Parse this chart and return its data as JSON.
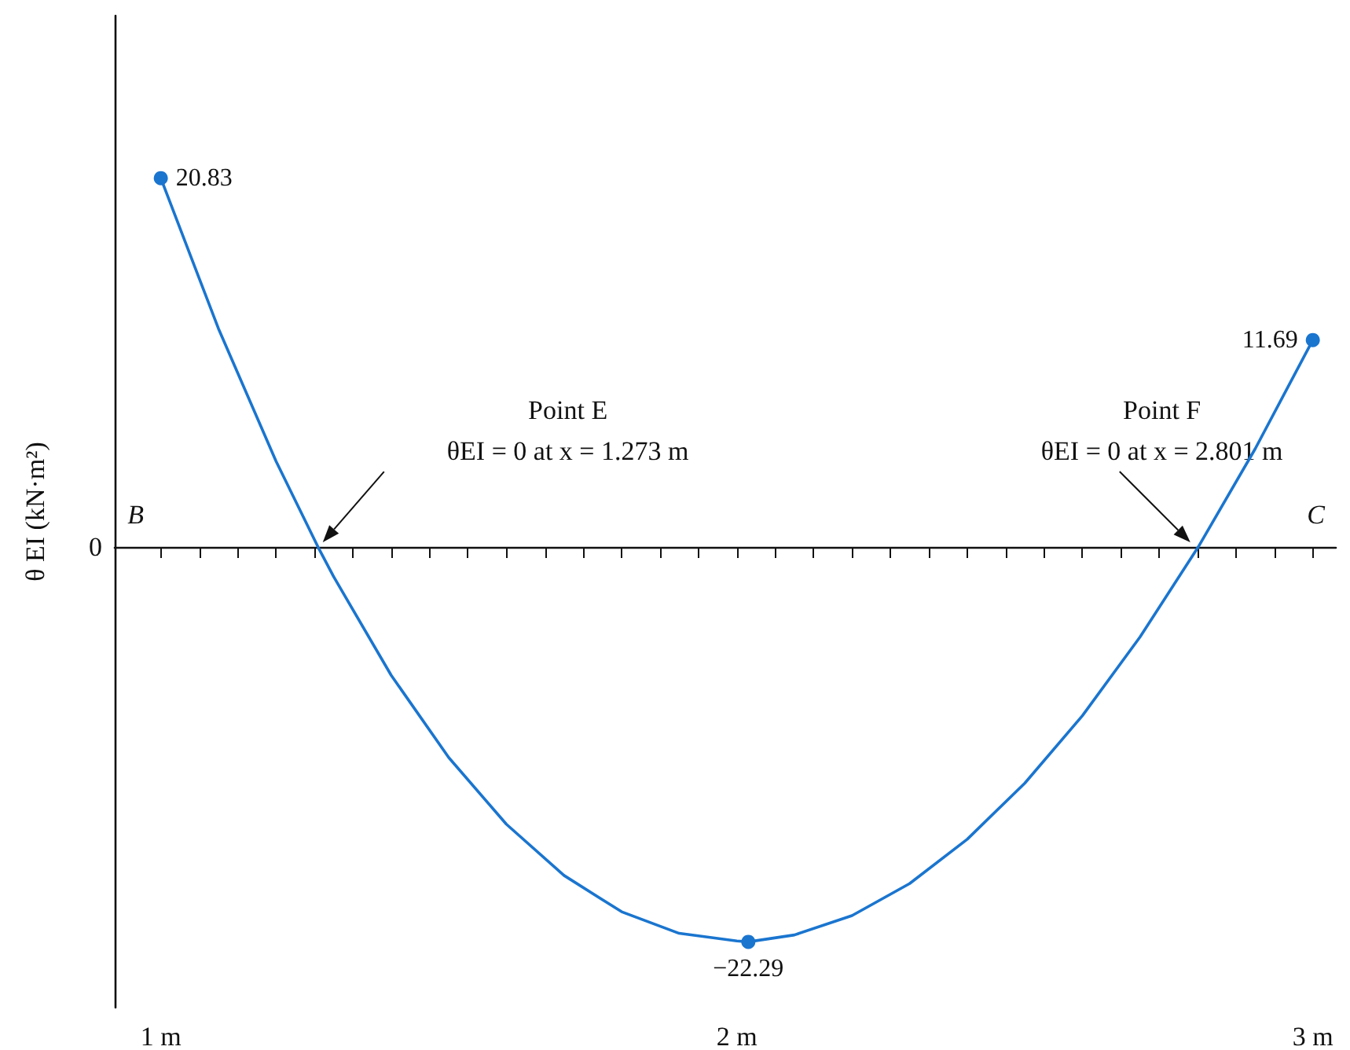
{
  "chart_data": {
    "type": "line",
    "ylabel": "θ EI (kN·m²)",
    "ylim": [
      -26,
      30
    ],
    "x": [
      1,
      1.1,
      1.2,
      1.273,
      1.3,
      1.4,
      1.5,
      1.6,
      1.7,
      1.8,
      1.9,
      2.0,
      2.02,
      2.1,
      2.2,
      2.3,
      2.4,
      2.5,
      2.6,
      2.7,
      2.801,
      2.9,
      3.0
    ],
    "series": [
      {
        "color": "#1a75cf",
        "values": [
          20.83,
          12.34,
          4.85,
          0,
          -1.67,
          -7.24,
          -11.89,
          -15.65,
          -18.54,
          -20.59,
          -21.81,
          -22.24,
          -22.29,
          -21.9,
          -20.81,
          -19.0,
          -16.5,
          -13.33,
          -9.52,
          -5.08,
          0,
          5.55,
          11.69
        ],
        "value_labels": [
          "20.83",
          null,
          null,
          null,
          null,
          null,
          null,
          null,
          null,
          null,
          null,
          null,
          "−22.29",
          null,
          null,
          null,
          null,
          null,
          null,
          null,
          null,
          null,
          "11.69"
        ]
      }
    ],
    "grid": false,
    "xlim": [
      0.92,
      3.04
    ],
    "xticks": [
      {
        "value": 1,
        "label": "1 m"
      },
      {
        "value": 1.067,
        "label": null
      },
      {
        "value": 1.133,
        "label": null
      },
      {
        "value": 1.2,
        "label": null
      },
      {
        "value": 1.267,
        "label": null
      },
      {
        "value": 1.333,
        "label": null
      },
      {
        "value": 1.4,
        "label": null
      },
      {
        "value": 1.467,
        "label": null
      },
      {
        "value": 1.533,
        "label": null
      },
      {
        "value": 1.6,
        "label": null
      },
      {
        "value": 1.667,
        "label": null
      },
      {
        "value": 1.733,
        "label": null
      },
      {
        "value": 1.8,
        "label": null
      },
      {
        "value": 1.867,
        "label": null
      },
      {
        "value": 1.933,
        "label": null
      },
      {
        "value": 2,
        "label": "2 m"
      },
      {
        "value": 2.067,
        "label": null
      },
      {
        "value": 2.133,
        "label": null
      },
      {
        "value": 2.2,
        "label": null
      },
      {
        "value": 2.267,
        "label": null
      },
      {
        "value": 2.333,
        "label": null
      },
      {
        "value": 2.4,
        "label": null
      },
      {
        "value": 2.467,
        "label": null
      },
      {
        "value": 2.533,
        "label": null
      },
      {
        "value": 2.6,
        "label": null
      },
      {
        "value": 2.667,
        "label": null
      },
      {
        "value": 2.733,
        "label": null
      },
      {
        "value": 2.8,
        "label": null
      },
      {
        "value": 2.867,
        "label": null
      },
      {
        "value": 2.933,
        "label": null
      },
      {
        "value": 3,
        "label": "3 m"
      }
    ],
    "annotations": [
      "0",
      "B",
      "C",
      "Point E\nθEI = 0 at x = 1.273 m",
      "Point F\nθEI = 0 at x = 2.801 m"
    ]
  }
}
